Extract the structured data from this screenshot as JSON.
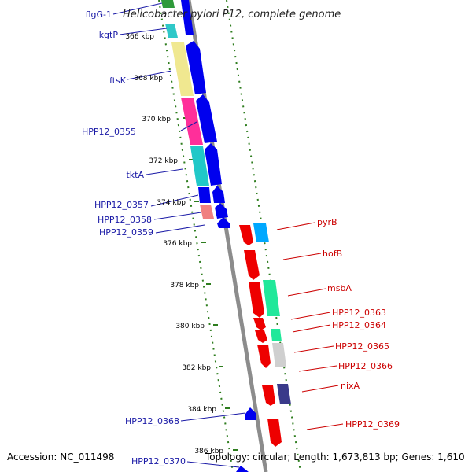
{
  "title": "Helicobacter pylori P12, complete genome",
  "footer": {
    "accession": "Accession: NC_011498",
    "summary": "Topology: circular; Length: 1,673,813 bp; Genes: 1,610"
  },
  "ticks": [
    "366 kbp",
    "368 kbp",
    "370 kbp",
    "372 kbp",
    "374 kbp",
    "376 kbp",
    "378 kbp",
    "380 kbp",
    "382 kbp",
    "384 kbp",
    "386 kbp"
  ],
  "genes_left": [
    "flgG-1",
    "kgtP",
    "ftsK",
    "HPP12_0355",
    "tktA",
    "HPP12_0357",
    "HPP12_0358",
    "HPP12_0359",
    "HPP12_0368",
    "HPP12_0370"
  ],
  "genes_right": [
    "pyrB",
    "hofB",
    "msbA",
    "HPP12_0363",
    "HPP12_0364",
    "HPP12_0365",
    "HPP12_0366",
    "nixA",
    "HPP12_0369"
  ],
  "colors": {
    "backbone": "#8c8c8c",
    "tick": "#2e7d1e",
    "forward_strand": "#0000ee",
    "reverse_strand": "#ee0000",
    "left_label": "#1a1aa6",
    "right_label": "#cc0000"
  }
}
